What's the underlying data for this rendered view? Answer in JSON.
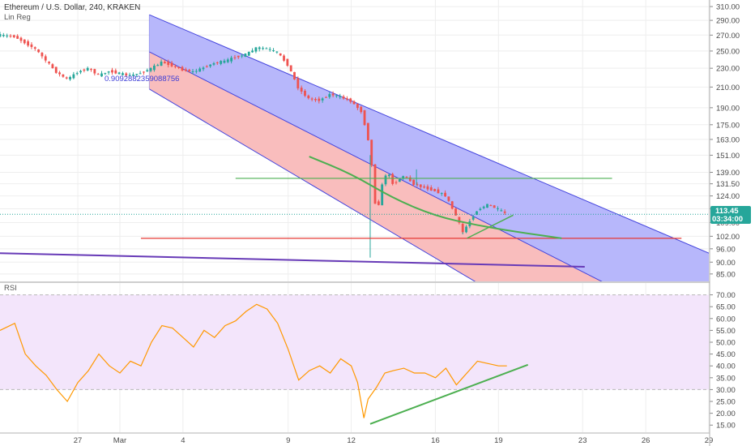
{
  "header": {
    "symbol_line": "Ethereum / U.S. Dollar, 240, KRAKEN",
    "indicator": "Lin Reg",
    "regression_value": "0.9092882359088756"
  },
  "rsi_panel": {
    "label": "RSI"
  },
  "colors": {
    "up": "#26a69a",
    "down": "#ef5350",
    "channel_upper_fill": "#b3b3fb",
    "channel_lower_fill": "#f9b9b9",
    "channel_line": "#4444dd",
    "green_line": "#4caf50",
    "red_line": "#e53935",
    "purple_line": "#673ab7",
    "rsi_line": "#ff9800",
    "rsi_band": "#f3e5fb",
    "price_tag": "#26a69a"
  },
  "price_tag": {
    "price": "113.45",
    "countdown": "03:34:00"
  },
  "chart_data": [
    {
      "type": "candlestick",
      "title": "Ethereum / U.S. Dollar, 240, KRAKEN",
      "scale": "log",
      "ylim": [
        82,
        320
      ],
      "y_ticks": [
        "310.00",
        "290.00",
        "270.00",
        "250.00",
        "230.00",
        "210.00",
        "190.00",
        "175.00",
        "163.00",
        "151.00",
        "139.00",
        "131.50",
        "124.00",
        "116.50",
        "109.00",
        "102.00",
        "96.00",
        "90.00",
        "85.00"
      ],
      "x_ticks": [
        "27",
        "Mar",
        "4",
        "9",
        "12",
        "16",
        "19",
        "23",
        "26",
        "29"
      ],
      "x_tick_days": [
        -2,
        0,
        3,
        8,
        11,
        15,
        18,
        22,
        25,
        28
      ],
      "x_range_days": [
        -5.7,
        28
      ],
      "path": [
        [
          -5.7,
          270
        ],
        [
          -5,
          268
        ],
        [
          -4,
          252
        ],
        [
          -3.5,
          238
        ],
        [
          -3,
          225
        ],
        [
          -2.5,
          218
        ],
        [
          -2,
          226
        ],
        [
          -1.5,
          230
        ],
        [
          -1,
          222
        ],
        [
          -0.5,
          227
        ],
        [
          0,
          224
        ],
        [
          0.5,
          222
        ],
        [
          1,
          225
        ],
        [
          1.5,
          230
        ],
        [
          2,
          237
        ],
        [
          2.5,
          233
        ],
        [
          3,
          228
        ],
        [
          3.5,
          226
        ],
        [
          4,
          231
        ],
        [
          4.5,
          236
        ],
        [
          5,
          238
        ],
        [
          5.5,
          243
        ],
        [
          6,
          246
        ],
        [
          6.5,
          254
        ],
        [
          7,
          253
        ],
        [
          7.5,
          248
        ],
        [
          8,
          233
        ],
        [
          8.5,
          208
        ],
        [
          9,
          198
        ],
        [
          9.5,
          197
        ],
        [
          10,
          203
        ],
        [
          10.5,
          200
        ],
        [
          11,
          196
        ],
        [
          11.5,
          186
        ],
        [
          11.8,
          163
        ],
        [
          12,
          140
        ],
        [
          12.2,
          111
        ],
        [
          12.4,
          128
        ],
        [
          12.7,
          140
        ],
        [
          13,
          131
        ],
        [
          13.5,
          137
        ],
        [
          14,
          131
        ],
        [
          14.5,
          129
        ],
        [
          15,
          127
        ],
        [
          15.5,
          124
        ],
        [
          16,
          112
        ],
        [
          16.3,
          104
        ],
        [
          16.7,
          111
        ],
        [
          17,
          116
        ],
        [
          17.5,
          119
        ],
        [
          18,
          116
        ],
        [
          18.4,
          113.45
        ]
      ],
      "events": [
        [
          11.9,
          92
        ],
        [
          16.3,
          103
        ],
        [
          14.1,
          141
        ]
      ],
      "lin_reg": {
        "start_day": 1.4,
        "upper": [
          [
            1.4,
            298
          ],
          [
            28,
            94
          ]
        ],
        "middle": [
          [
            1.4,
            249
          ],
          [
            28,
            63
          ]
        ],
        "lower": [
          [
            1.4,
            208
          ],
          [
            28,
            42
          ]
        ]
      },
      "annotations": {
        "horizontal_green": {
          "price": 135,
          "from_day": 5.5,
          "to_day": 23.4
        },
        "horizontal_red": {
          "price": 101,
          "from_day": 1,
          "to_day": 26.7
        },
        "purple_trend": {
          "from": [
            -5.7,
            94
          ],
          "to": [
            22.1,
            88
          ]
        },
        "green_arc": [
          [
            9,
            150
          ],
          [
            11,
            138
          ],
          [
            13,
            122.5
          ],
          [
            15,
            112.5
          ],
          [
            17,
            107.5
          ],
          [
            19,
            104
          ],
          [
            21,
            101
          ]
        ],
        "green_support": {
          "from": [
            16.5,
            101
          ],
          "to": [
            18.7,
            113
          ]
        }
      }
    },
    {
      "type": "line",
      "title": "RSI",
      "ylim": [
        12,
        75
      ],
      "y_ticks": [
        "70.00",
        "65.00",
        "60.00",
        "55.00",
        "50.00",
        "45.00",
        "40.00",
        "35.00",
        "30.00",
        "25.00",
        "20.00",
        "15.00"
      ],
      "band": [
        30,
        70
      ],
      "values": [
        [
          -5.7,
          55
        ],
        [
          -5,
          58
        ],
        [
          -4.5,
          45
        ],
        [
          -4,
          40
        ],
        [
          -3.5,
          36
        ],
        [
          -3,
          30
        ],
        [
          -2.5,
          25
        ],
        [
          -2,
          33
        ],
        [
          -1.5,
          38
        ],
        [
          -1,
          45
        ],
        [
          -0.5,
          40
        ],
        [
          0,
          37
        ],
        [
          0.5,
          42
        ],
        [
          1,
          40
        ],
        [
          1.5,
          50
        ],
        [
          2,
          57
        ],
        [
          2.5,
          56
        ],
        [
          3,
          52
        ],
        [
          3.5,
          48
        ],
        [
          4,
          55
        ],
        [
          4.5,
          52
        ],
        [
          5,
          57
        ],
        [
          5.5,
          59
        ],
        [
          6,
          63
        ],
        [
          6.5,
          66
        ],
        [
          7,
          64
        ],
        [
          7.5,
          58
        ],
        [
          8,
          47
        ],
        [
          8.5,
          34
        ],
        [
          9,
          38
        ],
        [
          9.5,
          40
        ],
        [
          10,
          37
        ],
        [
          10.5,
          43
        ],
        [
          11,
          40
        ],
        [
          11.3,
          33
        ],
        [
          11.6,
          18
        ],
        [
          11.8,
          26
        ],
        [
          12.2,
          31
        ],
        [
          12.6,
          37
        ],
        [
          13,
          38
        ],
        [
          13.5,
          39
        ],
        [
          14,
          37
        ],
        [
          14.5,
          37
        ],
        [
          15,
          35
        ],
        [
          15.5,
          39
        ],
        [
          16,
          32
        ],
        [
          16.3,
          35
        ],
        [
          16.6,
          38
        ],
        [
          17,
          42
        ],
        [
          17.5,
          41
        ],
        [
          18,
          40
        ],
        [
          18.4,
          40
        ]
      ],
      "trendline": {
        "from": [
          11.9,
          15.5
        ],
        "to": [
          19.4,
          40.5
        ]
      }
    }
  ]
}
